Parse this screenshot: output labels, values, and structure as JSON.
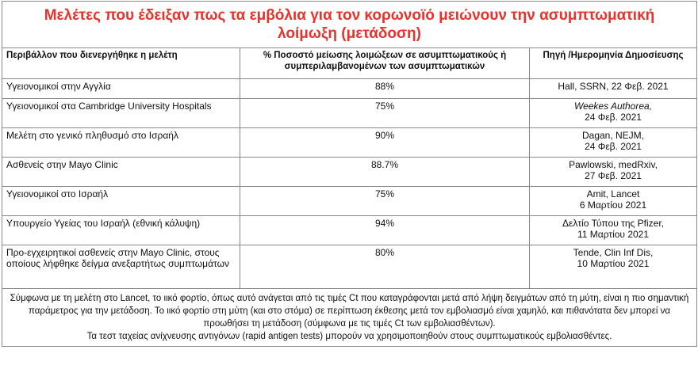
{
  "title": "Μελέτες που έδειξαν πως τα εμβόλια για τον κορωνοϊό μειώνουν την ασυμπτωματική λοίμωξη (μετάδοση)",
  "table": {
    "header": [
      "Περιβάλλον που διενεργήθηκε η μελέτη",
      "% Ποσοστό μείωσης λοιμώξεων σε ασυμπτωματικούς ή συμπεριλαμβανομένων των ασυμπτωματικών",
      [
        "Πηγή /",
        "Ημερομηνία Δημοσίευσης"
      ]
    ],
    "rows": [
      [
        "Υγειονομικοί στην Αγγλία",
        "88%",
        [
          "Hall, SSRN, 22 Φεβ. 2021"
        ]
      ],
      [
        "Υγειονομικοί στα Cambridge University Hospitals",
        "75%",
        [
          "Weekes Authorea,",
          "24 Φεβ. 2021"
        ]
      ],
      [
        "Μελέτη στο γενικό πληθυσμό στο Ισραήλ",
        "90%",
        [
          "Dagan, NEJM,",
          "24 Φεβ. 2021"
        ]
      ],
      [
        "Ασθενείς στην Mayo Clinic",
        "88.7%",
        [
          "Pawlowski, medRxiv,",
          "27 Φεβ. 2021"
        ]
      ],
      [
        "Υγειονομικοί στο Ισραήλ",
        "75%",
        [
          "Amit, Lancet",
          "6 Μαρτίου 2021"
        ]
      ],
      [
        "Υπουργείο Υγείας του Ισραήλ (εθνική κάλυψη)",
        "94%",
        [
          "Δελτίο Τύπου της Pfizer,",
          "11 Μαρτίου 2021"
        ]
      ],
      [
        "Προ-εγχειρητικοί ασθενείς στην Mayo Clinic, στους οποίους λήφθηκε δείγμα ανεξαρτήτως συμπτωμάτων",
        "80%",
        [
          "Tende, Clin Inf Dis,",
          "10 Μαρτίου 2021"
        ]
      ]
    ]
  },
  "note": [
    "Σύμφωνα με τη μελέτη στο Lancet, το ιικό φορτίο, όπως αυτό ανάγεται από τις τιμές Ct που καταγράφονται μετά από λήψη δειγμάτων από τη μύτη, είναι η πιο σημαντική παράμετρος για την μετάδοση. Το ιικό φορτίο στη μύτη (και στο στόμα) σε περίπτωση έκθεσης μετά τον εμβολιασμό είναι χαμηλό, και πιθανότατα δεν μπορεί να προωθήσει τη μετάδοση (σύμφωνα με τις τιμές Ct των εμβολιασθέντων).",
    "Τα τεστ ταχείας ανίχνευσης αντιγόνων (rapid antigen tests) μπορούν να χρησιμοποιηθούν στους συμπτωματικούς εμβολιασθέντες."
  ]
}
